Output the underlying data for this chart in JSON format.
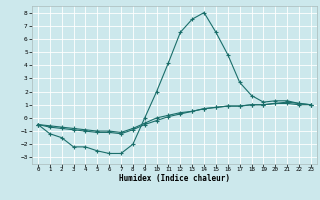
{
  "xlabel": "Humidex (Indice chaleur)",
  "background_color": "#cce8ec",
  "plot_bg_color": "#cce8ec",
  "axis_bar_color": "#5a7a7a",
  "grid_color": "#ffffff",
  "line_color": "#1a6e6a",
  "xlim": [
    -0.5,
    23.5
  ],
  "ylim": [
    -3.5,
    8.5
  ],
  "yticks": [
    -3,
    -2,
    -1,
    0,
    1,
    2,
    3,
    4,
    5,
    6,
    7,
    8
  ],
  "xticks": [
    0,
    1,
    2,
    3,
    4,
    5,
    6,
    7,
    8,
    9,
    10,
    11,
    12,
    13,
    14,
    15,
    16,
    17,
    18,
    19,
    20,
    21,
    22,
    23
  ],
  "series": [
    {
      "x": [
        0,
        1,
        2,
        3,
        4,
        5,
        6,
        7,
        8,
        9,
        10,
        11,
        12,
        13,
        14,
        15,
        16,
        17,
        18,
        19,
        20,
        21,
        22,
        23
      ],
      "y": [
        -0.5,
        -1.2,
        -1.5,
        -2.2,
        -2.2,
        -2.5,
        -2.7,
        -2.7,
        -2.0,
        0.0,
        2.0,
        4.2,
        6.5,
        7.5,
        8.0,
        6.5,
        4.8,
        2.7,
        1.7,
        1.2,
        1.3,
        1.3,
        1.1,
        1.0
      ]
    },
    {
      "x": [
        0,
        1,
        2,
        3,
        4,
        5,
        6,
        7,
        8,
        9,
        10,
        11,
        12,
        13,
        14,
        15,
        16,
        17,
        18,
        19,
        20,
        21,
        22,
        23
      ],
      "y": [
        -0.5,
        -0.7,
        -0.8,
        -0.9,
        -1.0,
        -1.1,
        -1.1,
        -1.2,
        -0.9,
        -0.5,
        -0.2,
        0.1,
        0.3,
        0.5,
        0.7,
        0.8,
        0.9,
        0.9,
        1.0,
        1.0,
        1.1,
        1.1,
        1.0,
        1.0
      ]
    },
    {
      "x": [
        0,
        1,
        2,
        3,
        4,
        5,
        6,
        7,
        8,
        9,
        10,
        11,
        12,
        13,
        14,
        15,
        16,
        17,
        18,
        19,
        20,
        21,
        22,
        23
      ],
      "y": [
        -0.5,
        -0.6,
        -0.7,
        -0.8,
        -0.9,
        -1.0,
        -1.0,
        -1.1,
        -0.8,
        -0.4,
        0.0,
        0.2,
        0.4,
        0.5,
        0.7,
        0.8,
        0.9,
        0.9,
        1.0,
        1.0,
        1.1,
        1.2,
        1.1,
        1.0
      ]
    }
  ]
}
